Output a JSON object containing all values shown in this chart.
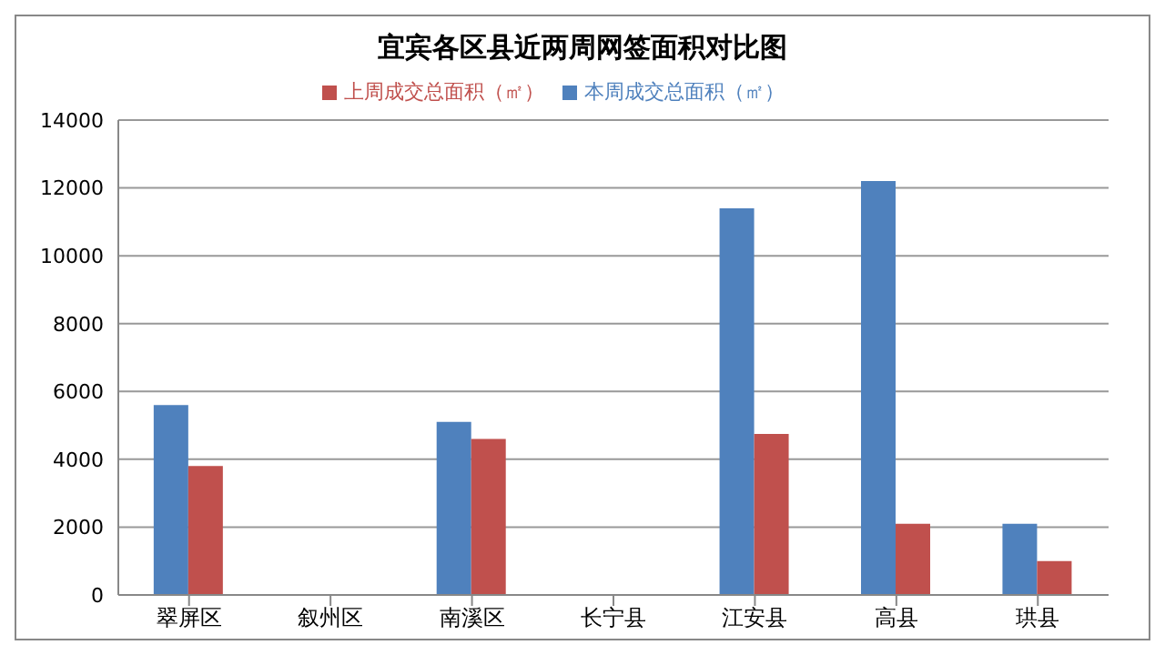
{
  "chart_data": {
    "type": "bar",
    "title": "宜宾各区县近两周网签面积对比图",
    "categories": [
      "翠屏区",
      "叙州区",
      "南溪区",
      "长宁县",
      "江安县",
      "高县",
      "珙县"
    ],
    "series": [
      {
        "name": "本周成交总面积（㎡）",
        "color": "#4f81bd",
        "values": [
          5600,
          null,
          5100,
          null,
          11400,
          12200,
          2100
        ]
      },
      {
        "name": "上周成交总面积（㎡）",
        "color": "#c0504d",
        "values": [
          3800,
          null,
          4600,
          null,
          4750,
          2100,
          1000
        ]
      }
    ],
    "ylim": [
      0,
      14000
    ],
    "yticks": [
      0,
      2000,
      4000,
      6000,
      8000,
      10000,
      12000,
      14000
    ],
    "grid": "y",
    "legend": "top"
  }
}
